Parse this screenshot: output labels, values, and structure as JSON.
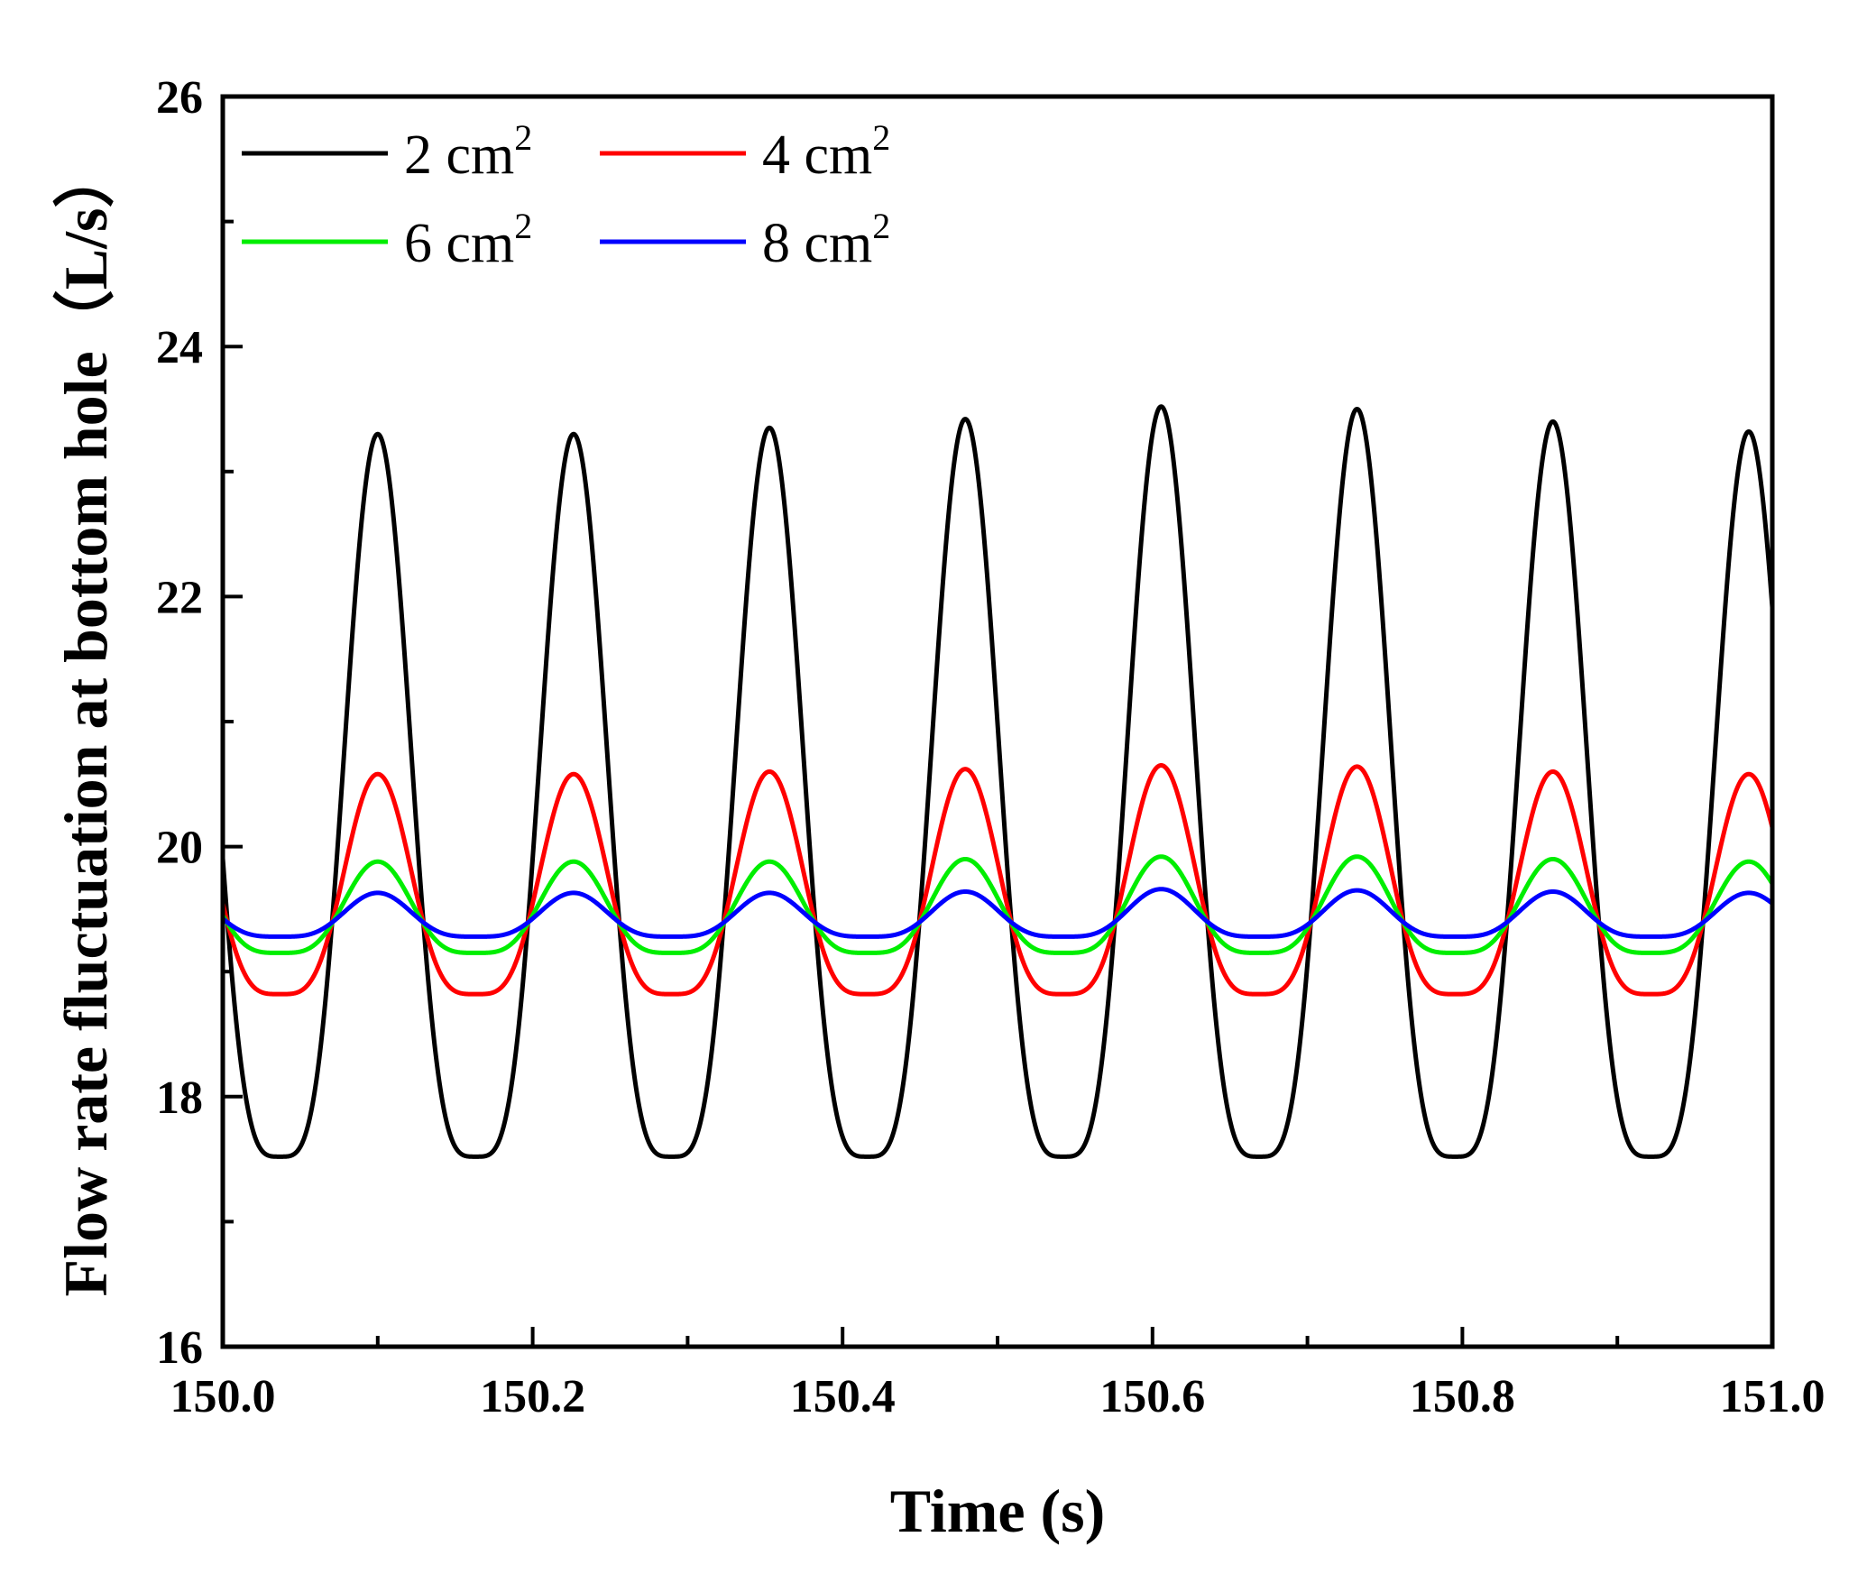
{
  "chart_data": {
    "type": "line",
    "title": "",
    "xlabel": "Time (s)",
    "ylabel": "Flow rate fluctuation at bottom hole（L/s）",
    "xlim": [
      150.0,
      151.0
    ],
    "ylim": [
      16,
      26
    ],
    "xticks": [
      "150.0",
      "150.2",
      "150.4",
      "150.6",
      "150.8",
      "151.0"
    ],
    "yticks": [
      "16",
      "18",
      "20",
      "22",
      "24",
      "26"
    ],
    "grid": false,
    "legend_position": "top-left",
    "period": 0.1264,
    "first_peak_x": 150.1,
    "series": [
      {
        "name": "2 cm",
        "unit_sup": "2",
        "color": "#000000",
        "peaks": [
          23.3,
          23.3,
          23.35,
          23.42,
          23.52,
          23.5,
          23.4,
          23.32
        ],
        "trough": 17.52
      },
      {
        "name": "4 cm",
        "unit_sup": "2",
        "color": "#ff0000",
        "peaks": [
          20.58,
          20.58,
          20.6,
          20.62,
          20.65,
          20.64,
          20.6,
          20.58
        ],
        "trough": 18.82
      },
      {
        "name": "6 cm",
        "unit_sup": "2",
        "color": "#00ee00",
        "peaks": [
          19.88,
          19.88,
          19.88,
          19.9,
          19.92,
          19.92,
          19.9,
          19.88
        ],
        "trough": 19.15
      },
      {
        "name": "8 cm",
        "unit_sup": "2",
        "color": "#0000ff",
        "peaks": [
          19.63,
          19.63,
          19.63,
          19.64,
          19.66,
          19.65,
          19.64,
          19.63
        ],
        "trough": 19.28
      }
    ]
  }
}
